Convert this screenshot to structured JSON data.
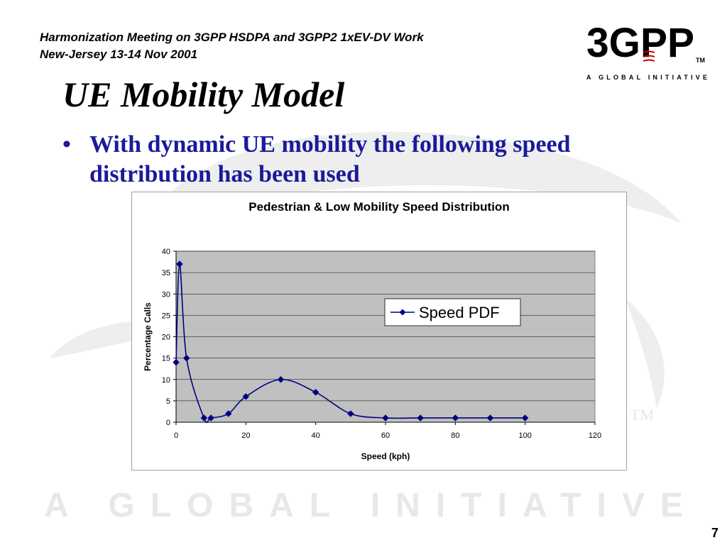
{
  "header": {
    "line1": "Harmonization Meeting on 3GPP HSDPA and 3GPP2 1xEV-DV Work",
    "line2": "New-Jersey 13-14 Nov 2001"
  },
  "logo": {
    "wordmark": "3GPP",
    "tagline": "A GLOBAL INITIATIVE",
    "trademark": "TM"
  },
  "background": {
    "watermark_text": "A GLOBAL INITIATIVE",
    "watermark_tm": "TM"
  },
  "slide": {
    "title": "UE Mobility Model",
    "bullet_marker": "•",
    "bullet_text": "With dynamic UE mobility the following speed distribution has been used",
    "page_number": "7"
  },
  "colors": {
    "bullet_text": "#1a1a99",
    "series": "#000080",
    "plot_background": "#c0c0c0",
    "watermark": "#eeeeee"
  },
  "chart_data": {
    "type": "line",
    "title": "Pedestrian & Low Mobility Speed Distribution",
    "xlabel": "Speed (kph)",
    "ylabel": "Percentage Calls",
    "xlim": [
      0,
      120
    ],
    "ylim": [
      0,
      40
    ],
    "x_ticks": [
      0,
      20,
      40,
      60,
      80,
      100,
      120
    ],
    "y_ticks": [
      0,
      5,
      10,
      15,
      20,
      25,
      30,
      35,
      40
    ],
    "grid": "horizontal",
    "legend_position": "right",
    "smooth": true,
    "marker": "diamond",
    "series": [
      {
        "name": "Speed PDF",
        "x": [
          0,
          1,
          3,
          8,
          10,
          15,
          20,
          30,
          40,
          50,
          60,
          70,
          80,
          90,
          100
        ],
        "y": [
          14,
          37,
          15,
          1,
          1,
          2,
          6,
          10,
          7,
          2,
          1,
          1,
          1,
          1,
          1
        ]
      }
    ]
  }
}
